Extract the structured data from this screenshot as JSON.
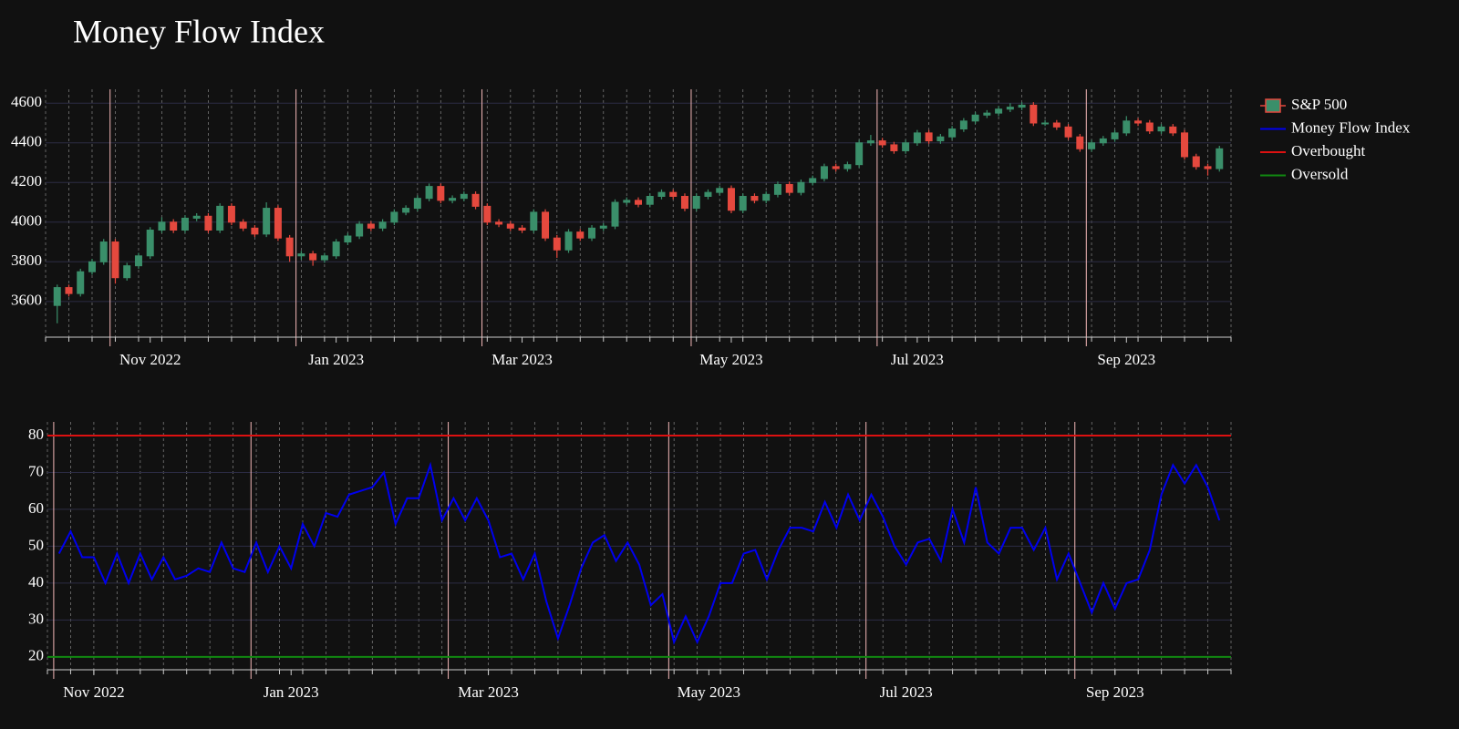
{
  "title": "Money Flow Index",
  "chart_data": [
    {
      "type": "candlestick",
      "series": [
        {
          "name": "S&P 500",
          "up_color": "#3a8f6a",
          "down_color": "#e5493e",
          "open": [
            3580,
            3670,
            3640,
            3750,
            3800,
            3900,
            3720,
            3780,
            3830,
            3960,
            4000,
            3960,
            4020,
            4030,
            3960,
            4080,
            4000,
            3970,
            3940,
            4070,
            3920,
            3830,
            3840,
            3810,
            3830,
            3900,
            3930,
            3990,
            3970,
            4000,
            4050,
            4070,
            4120,
            4180,
            4110,
            4120,
            4140,
            4080,
            4000,
            3990,
            3970,
            3960,
            4050,
            3920,
            3860,
            3950,
            3920,
            3970,
            3980,
            4100,
            4110,
            4090,
            4130,
            4150,
            4130,
            4070,
            4130,
            4150,
            4170,
            4060,
            4130,
            4110,
            4140,
            4190,
            4150,
            4200,
            4220,
            4280,
            4270,
            4290,
            4400,
            4410,
            4390,
            4360,
            4400,
            4450,
            4410,
            4430,
            4470,
            4510,
            4540,
            4550,
            4570,
            4580,
            4590,
            4500,
            4500,
            4480,
            4430,
            4370,
            4400,
            4420,
            4450,
            4510,
            4500,
            4460,
            4480,
            4450,
            4330,
            4280,
            4270
          ],
          "high": [
            3685,
            3685,
            3765,
            3815,
            3915,
            3915,
            3795,
            3845,
            3975,
            4025,
            4015,
            4035,
            4045,
            4045,
            4095,
            4095,
            4015,
            3985,
            4100,
            4085,
            3935,
            3855,
            3855,
            3845,
            3915,
            3945,
            4005,
            4005,
            4015,
            4065,
            4085,
            4135,
            4195,
            4195,
            4135,
            4155,
            4155,
            4095,
            4015,
            4005,
            3985,
            4065,
            4065,
            3935,
            3965,
            3965,
            3985,
            3995,
            4115,
            4125,
            4125,
            4145,
            4165,
            4165,
            4145,
            4145,
            4165,
            4185,
            4185,
            4145,
            4145,
            4155,
            4205,
            4205,
            4215,
            4235,
            4295,
            4295,
            4305,
            4415,
            4440,
            4425,
            4405,
            4415,
            4465,
            4465,
            4445,
            4485,
            4525,
            4555,
            4565,
            4585,
            4600,
            4605,
            4605,
            4515,
            4515,
            4495,
            4445,
            4415,
            4435,
            4465,
            4535,
            4525,
            4515,
            4495,
            4495,
            4465,
            4345,
            4295,
            4385
          ],
          "low": [
            3490,
            3625,
            3625,
            3735,
            3785,
            3690,
            3705,
            3765,
            3815,
            3945,
            3945,
            3945,
            4005,
            3945,
            3945,
            3985,
            3955,
            3925,
            3925,
            3905,
            3800,
            3810,
            3780,
            3795,
            3815,
            3885,
            3915,
            3955,
            3955,
            3985,
            4035,
            4055,
            4105,
            4095,
            4095,
            4105,
            4065,
            3985,
            3975,
            3955,
            3945,
            3945,
            3905,
            3820,
            3845,
            3905,
            3905,
            3955,
            3965,
            4085,
            4075,
            4075,
            4115,
            4115,
            4055,
            4055,
            4115,
            4135,
            4045,
            4045,
            4095,
            4095,
            4125,
            4135,
            4135,
            4185,
            4205,
            4255,
            4255,
            4275,
            4385,
            4375,
            4345,
            4345,
            4385,
            4395,
            4395,
            4415,
            4455,
            4495,
            4525,
            4535,
            4555,
            4565,
            4485,
            4485,
            4465,
            4415,
            4355,
            4355,
            4385,
            4405,
            4435,
            4485,
            4445,
            4445,
            4435,
            4315,
            4265,
            4235,
            4255
          ],
          "close": [
            3670,
            3640,
            3750,
            3800,
            3900,
            3720,
            3780,
            3830,
            3960,
            4000,
            3960,
            4020,
            4030,
            3960,
            4080,
            4000,
            3970,
            3940,
            4070,
            3920,
            3830,
            3840,
            3810,
            3830,
            3900,
            3930,
            3990,
            3970,
            4000,
            4050,
            4070,
            4120,
            4180,
            4110,
            4120,
            4140,
            4080,
            4000,
            3990,
            3970,
            3960,
            4050,
            3920,
            3860,
            3950,
            3920,
            3970,
            3980,
            4100,
            4110,
            4090,
            4130,
            4150,
            4130,
            4070,
            4130,
            4150,
            4170,
            4060,
            4130,
            4110,
            4140,
            4190,
            4150,
            4200,
            4220,
            4280,
            4270,
            4290,
            4400,
            4410,
            4390,
            4360,
            4400,
            4450,
            4410,
            4430,
            4470,
            4510,
            4540,
            4550,
            4570,
            4580,
            4590,
            4500,
            4500,
            4480,
            4430,
            4370,
            4400,
            4420,
            4450,
            4510,
            4500,
            4460,
            4480,
            4450,
            4330,
            4280,
            4270,
            4370
          ]
        }
      ],
      "xlim": [
        -1,
        101
      ],
      "xticks": [
        {
          "value": 8,
          "label": "Nov 2022"
        },
        {
          "value": 24,
          "label": "Jan 2023"
        },
        {
          "value": 40,
          "label": "Mar 2023"
        },
        {
          "value": 58,
          "label": "May 2023"
        },
        {
          "value": 74,
          "label": "Jul 2023"
        },
        {
          "value": 92,
          "label": "Sep 2023"
        }
      ],
      "ylim": [
        3420,
        4670
      ],
      "yticks": [
        3600,
        3800,
        4000,
        4200,
        4400,
        4600
      ],
      "grid": true
    },
    {
      "type": "line",
      "series": [
        {
          "name": "Money Flow Index",
          "color": "#0000ee",
          "values": [
            48,
            54,
            47,
            47,
            40,
            48,
            40,
            48,
            41,
            47,
            41,
            42,
            44,
            43,
            51,
            44,
            43,
            51,
            43,
            50,
            44,
            56,
            50,
            59,
            58,
            64,
            65,
            66,
            70,
            56,
            63,
            63,
            72,
            57,
            63,
            57,
            63,
            57,
            47,
            48,
            41,
            48,
            35,
            25,
            34,
            44,
            51,
            53,
            46,
            51,
            45,
            34,
            37,
            24,
            31,
            24,
            31,
            40,
            40,
            48,
            49,
            41,
            49,
            55,
            55,
            54,
            62,
            55,
            64,
            57,
            64,
            58,
            50,
            45,
            51,
            52,
            46,
            60,
            51,
            66,
            51,
            48,
            55,
            55,
            49,
            55,
            41,
            48,
            40,
            32,
            40,
            33,
            40,
            41,
            49,
            64,
            72,
            67,
            72,
            66,
            57
          ]
        }
      ],
      "hlines": [
        {
          "name": "Overbought",
          "color": "#dd1111",
          "value": 80
        },
        {
          "name": "Oversold",
          "color": "#118811",
          "value": 20
        }
      ],
      "xlim": [
        -1,
        101
      ],
      "xticks": [
        {
          "value": 3,
          "label": "Nov 2022"
        },
        {
          "value": 20,
          "label": "Jan 2023"
        },
        {
          "value": 37,
          "label": "Mar 2023"
        },
        {
          "value": 56,
          "label": "May 2023"
        },
        {
          "value": 73,
          "label": "Jul 2023"
        },
        {
          "value": 91,
          "label": "Sep 2023"
        }
      ],
      "ylim": [
        16.5,
        83.7
      ],
      "yticks": [
        20,
        30,
        40,
        50,
        60,
        70,
        80
      ],
      "grid": true
    }
  ]
}
